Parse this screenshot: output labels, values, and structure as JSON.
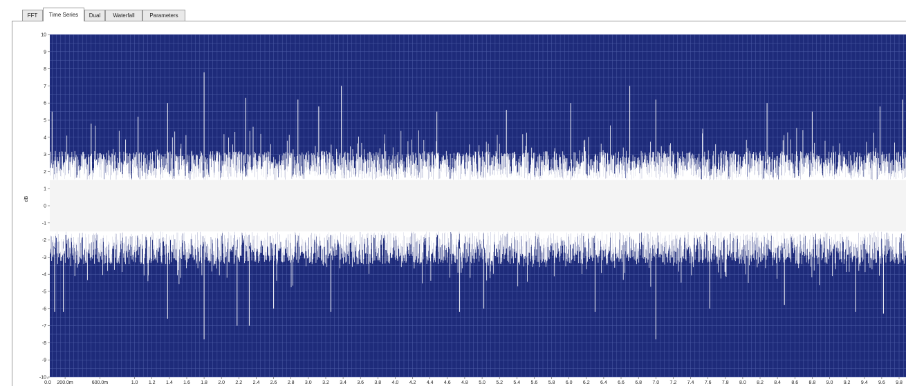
{
  "tabs": [
    {
      "label": "FFT",
      "active": false
    },
    {
      "label": "Time Series",
      "active": true
    },
    {
      "label": "Dual",
      "active": false
    },
    {
      "label": "Waterfall",
      "active": false
    },
    {
      "label": "Parameters",
      "active": false
    }
  ],
  "colors": {
    "plot_background": "#1e2b7a",
    "grid": "#4f5fa8",
    "trace": "#ffffff",
    "trace_band": "#f4f4f4",
    "axis_text": "#222222"
  },
  "chart_data": {
    "type": "line",
    "ylabel": "dB",
    "ylim": [
      -10,
      10
    ],
    "xlim": [
      0,
      9.9
    ],
    "y_ticks": [
      "10",
      "9",
      "8",
      "7",
      "6",
      "5",
      "4",
      "3",
      "2",
      "1",
      "0",
      "-1",
      "-2",
      "-3",
      "-4",
      "-5",
      "-6",
      "-7",
      "-8",
      "-9",
      "-10"
    ],
    "x_ticks": [
      {
        "v": 0.0,
        "label": "0.0"
      },
      {
        "v": 0.2,
        "label": "200.0m"
      },
      {
        "v": 0.6,
        "label": "600.0m"
      },
      {
        "v": 1.0,
        "label": "1.0"
      },
      {
        "v": 1.2,
        "label": "1.2"
      },
      {
        "v": 1.4,
        "label": "1.4"
      },
      {
        "v": 1.6,
        "label": "1.6"
      },
      {
        "v": 1.8,
        "label": "1.8"
      },
      {
        "v": 2.0,
        "label": "2.0"
      },
      {
        "v": 2.2,
        "label": "2.2"
      },
      {
        "v": 2.4,
        "label": "2.4"
      },
      {
        "v": 2.6,
        "label": "2.6"
      },
      {
        "v": 2.8,
        "label": "2.8"
      },
      {
        "v": 3.0,
        "label": "3.0"
      },
      {
        "v": 3.2,
        "label": "3.2"
      },
      {
        "v": 3.4,
        "label": "3.4"
      },
      {
        "v": 3.6,
        "label": "3.6"
      },
      {
        "v": 3.8,
        "label": "3.8"
      },
      {
        "v": 4.0,
        "label": "4.0"
      },
      {
        "v": 4.2,
        "label": "4.2"
      },
      {
        "v": 4.4,
        "label": "4.4"
      },
      {
        "v": 4.6,
        "label": "4.6"
      },
      {
        "v": 4.8,
        "label": "4.8"
      },
      {
        "v": 5.0,
        "label": "5.0"
      },
      {
        "v": 5.2,
        "label": "5.2"
      },
      {
        "v": 5.4,
        "label": "5.4"
      },
      {
        "v": 5.6,
        "label": "5.6"
      },
      {
        "v": 5.8,
        "label": "5.8"
      },
      {
        "v": 6.0,
        "label": "6.0"
      },
      {
        "v": 6.2,
        "label": "6.2"
      },
      {
        "v": 6.4,
        "label": "6.4"
      },
      {
        "v": 6.6,
        "label": "6.6"
      },
      {
        "v": 6.8,
        "label": "6.8"
      },
      {
        "v": 7.0,
        "label": "7.0"
      },
      {
        "v": 7.2,
        "label": "7.2"
      },
      {
        "v": 7.4,
        "label": "7.4"
      },
      {
        "v": 7.6,
        "label": "7.6"
      },
      {
        "v": 7.8,
        "label": "7.8"
      },
      {
        "v": 8.0,
        "label": "8.0"
      },
      {
        "v": 8.2,
        "label": "8.2"
      },
      {
        "v": 8.4,
        "label": "8.4"
      },
      {
        "v": 8.6,
        "label": "8.6"
      },
      {
        "v": 8.8,
        "label": "8.8"
      },
      {
        "v": 9.0,
        "label": "9.0"
      },
      {
        "v": 9.2,
        "label": "9.2"
      },
      {
        "v": 9.4,
        "label": "9.4"
      },
      {
        "v": 9.6,
        "label": "9.6"
      },
      {
        "v": 9.8,
        "label": "9.8"
      }
    ],
    "grid": true,
    "series": [
      {
        "envelope": {
          "upper_typical": [
            1.5,
            3.2
          ],
          "lower_typical": [
            -1.5,
            -3.4
          ],
          "peak_max": 7.8,
          "peak_min": -7.8
        },
        "peaks": [
          {
            "x": 1.8,
            "y": 7.8
          },
          {
            "x": 3.38,
            "y": 7.0
          },
          {
            "x": 6.7,
            "y": 7.0
          },
          {
            "x": 6.02,
            "y": 6.0
          },
          {
            "x": 1.38,
            "y": 6.0
          },
          {
            "x": 2.28,
            "y": 6.3
          },
          {
            "x": 2.88,
            "y": 6.2
          },
          {
            "x": 3.12,
            "y": 5.8
          },
          {
            "x": 7.0,
            "y": 6.2
          },
          {
            "x": 8.28,
            "y": 6.0
          },
          {
            "x": 9.58,
            "y": 5.8
          },
          {
            "x": 9.84,
            "y": 6.2
          },
          {
            "x": 0.05,
            "y": 5.5
          },
          {
            "x": 0.5,
            "y": 4.8
          },
          {
            "x": 1.04,
            "y": 5.2
          },
          {
            "x": 4.48,
            "y": 5.5
          },
          {
            "x": 5.28,
            "y": 5.6
          },
          {
            "x": 8.8,
            "y": 5.5
          },
          {
            "x": 1.8,
            "y": -7.8
          },
          {
            "x": 7.0,
            "y": -7.8
          },
          {
            "x": 2.18,
            "y": -7.0
          },
          {
            "x": 2.32,
            "y": -7.0
          },
          {
            "x": 1.38,
            "y": -6.6
          },
          {
            "x": 0.08,
            "y": -6.2
          },
          {
            "x": 0.18,
            "y": -6.2
          },
          {
            "x": 3.26,
            "y": -6.2
          },
          {
            "x": 4.74,
            "y": -6.2
          },
          {
            "x": 2.6,
            "y": -6.0
          },
          {
            "x": 5.02,
            "y": -6.0
          },
          {
            "x": 6.3,
            "y": -6.2
          },
          {
            "x": 7.62,
            "y": -6.0
          },
          {
            "x": 9.3,
            "y": -6.2
          },
          {
            "x": 9.62,
            "y": -6.3
          },
          {
            "x": 8.48,
            "y": -5.8
          }
        ]
      }
    ]
  }
}
